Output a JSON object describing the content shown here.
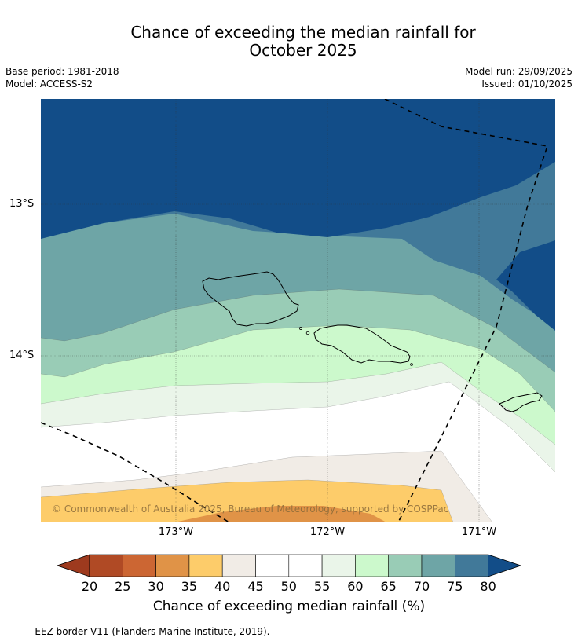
{
  "title": {
    "line1": "Chance of exceeding the median rainfall for",
    "line2": "October 2025"
  },
  "meta": {
    "base_period": "Base period: 1981-2018",
    "model": "Model: ACCESS-S2",
    "model_run": "Model run: 29/09/2025",
    "issued": "Issued: 01/10/2025"
  },
  "map": {
    "lat_labels": [
      "13°S",
      "14°S"
    ],
    "lon_labels": [
      "173°W",
      "172°W",
      "171°W"
    ],
    "copyright": "© Commonwealth of Australia 2025, Bureau of Meteorology, supported by COSPPac"
  },
  "colorbar": {
    "ticks": [
      "20",
      "25",
      "30",
      "35",
      "40",
      "45",
      "50",
      "55",
      "60",
      "65",
      "70",
      "75",
      "80"
    ],
    "colors": [
      "#9e3a1e",
      "#b04a25",
      "#cc6633",
      "#e09347",
      "#fdcc6a",
      "#f1ece6",
      "#ffffff",
      "#ffffff",
      "#eaf5e9",
      "#ccf9cc",
      "#99ccb6",
      "#6ea5a6",
      "#417999",
      "#124d88"
    ],
    "label": "Chance of exceeding median rainfall (%)"
  },
  "footnote": "--  --  -- EEZ border V11 (Flanders Marine Institute, 2019)."
}
